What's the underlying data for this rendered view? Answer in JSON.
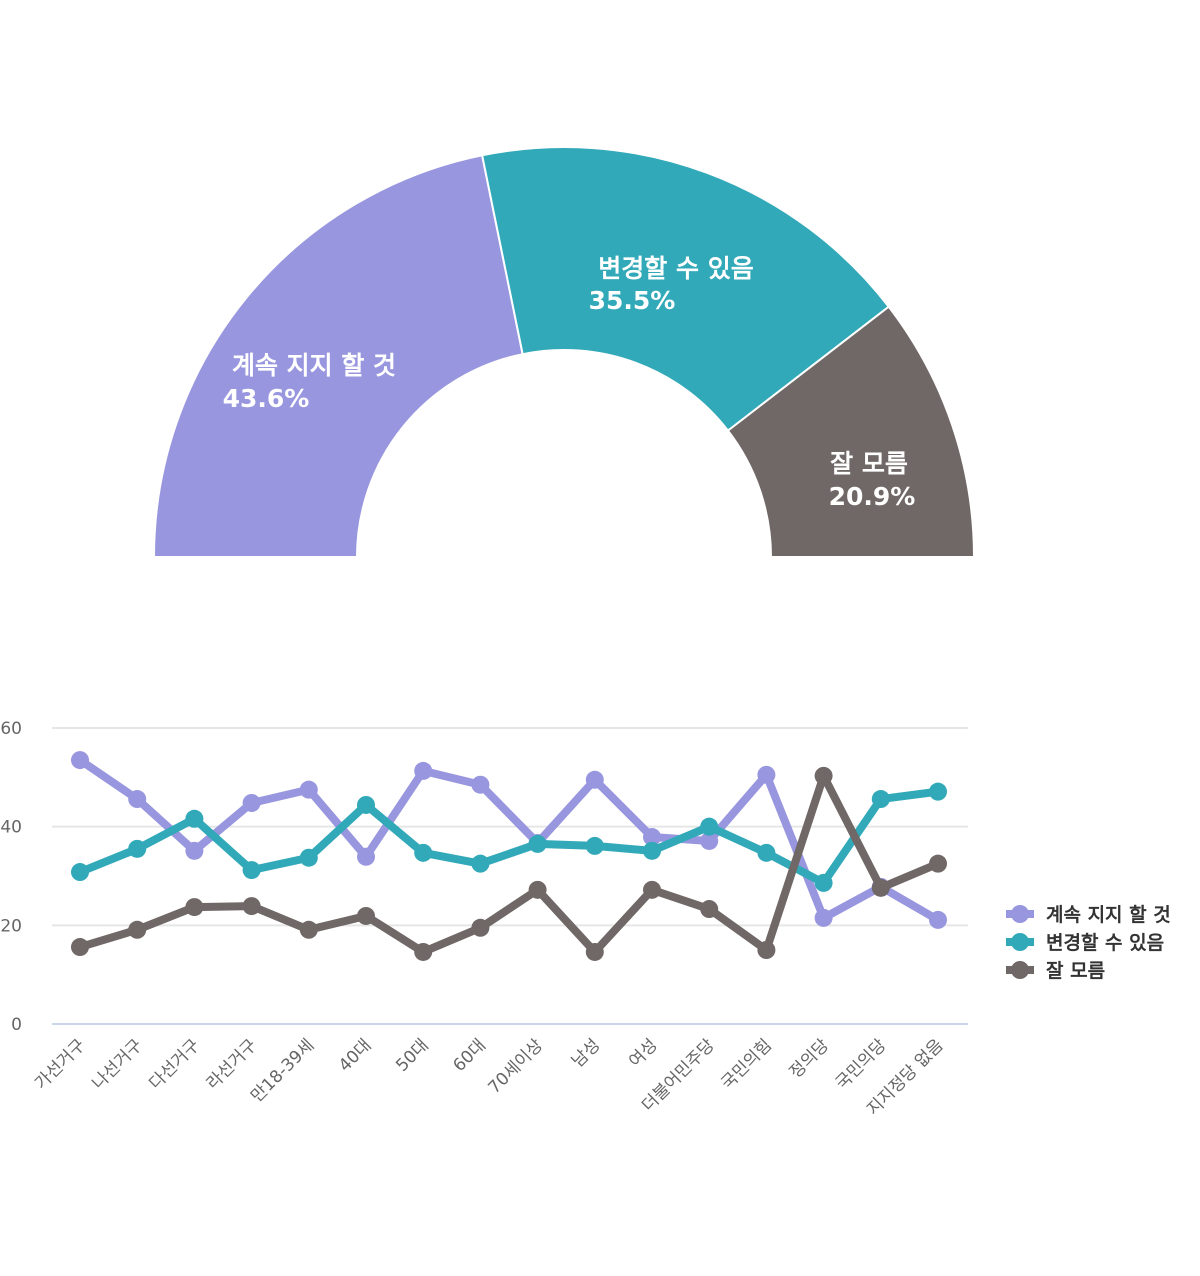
{
  "chart_data": [
    {
      "type": "pie",
      "variant": "semi-donut",
      "categories": [
        "계속 지지 할 것",
        "변경할 수 있음",
        "잘 모름"
      ],
      "values": [
        43.6,
        35.5,
        20.9
      ],
      "value_labels": [
        "43.6%",
        "35.5%",
        "20.9%"
      ],
      "colors": [
        "#9896de",
        "#31a9b8",
        "#706866"
      ]
    },
    {
      "type": "line",
      "categories": [
        "가선거구",
        "나선거구",
        "다선거구",
        "라선거구",
        "만18-39세",
        "40대",
        "50대",
        "60대",
        "70세이상",
        "남성",
        "여성",
        "더불어민주당",
        "국민의힘",
        "정의당",
        "국민의당",
        "지지정당 없음"
      ],
      "series": [
        {
          "name": "계속 지지 할 것",
          "color": "#9896de",
          "values": [
            53.5,
            45.6,
            35.1,
            44.8,
            47.5,
            33.9,
            51.3,
            48.5,
            36.7,
            49.5,
            37.9,
            37.1,
            50.5,
            21.5,
            27.8,
            21.1
          ]
        },
        {
          "name": "변경할 수 있음",
          "color": "#31a9b8",
          "values": [
            30.8,
            35.5,
            41.6,
            31.2,
            33.7,
            44.4,
            34.7,
            32.5,
            36.5,
            36.1,
            35.1,
            40.0,
            34.7,
            28.6,
            45.6,
            47.1
          ]
        },
        {
          "name": "잘 모름",
          "color": "#706866",
          "values": [
            15.6,
            19.1,
            23.7,
            23.9,
            19.1,
            21.9,
            14.6,
            19.5,
            27.2,
            14.6,
            27.2,
            23.3,
            15.0,
            50.3,
            27.6,
            32.5
          ]
        }
      ],
      "yticks": [
        "0",
        "20",
        "40",
        "60"
      ],
      "ylim": [
        0,
        60
      ],
      "grid": true,
      "legend": "right"
    }
  ]
}
